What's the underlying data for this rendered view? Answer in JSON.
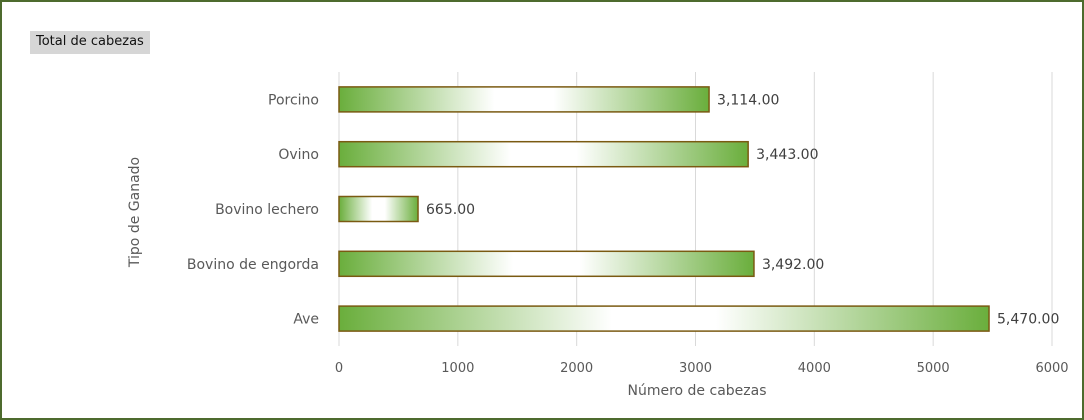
{
  "chart_data": {
    "type": "bar",
    "orientation": "horizontal",
    "title": "Total de cabezas",
    "xlabel": "Número de cabezas",
    "ylabel": "Tipo de Ganado",
    "categories": [
      "Porcino",
      "Ovino",
      "Bovino lechero",
      "Bovino de engorda",
      "Ave"
    ],
    "values": [
      3114,
      3443,
      665,
      3492,
      5470
    ],
    "data_labels": [
      "3,114.00",
      "3,443.00",
      "665.00",
      "3,492.00",
      "5,470.00"
    ],
    "xlim": [
      0,
      6000
    ],
    "xticks": [
      "0",
      "1000",
      "2000",
      "3000",
      "4000",
      "5000",
      "6000"
    ],
    "grid": true,
    "legend": "none",
    "colors": {
      "bar_fill": "#6aae3c",
      "bar_highlight": "#ffffff",
      "bar_border": "#7a5a12",
      "frame": "#4d6b2e",
      "grid": "#d9d9d9"
    }
  }
}
